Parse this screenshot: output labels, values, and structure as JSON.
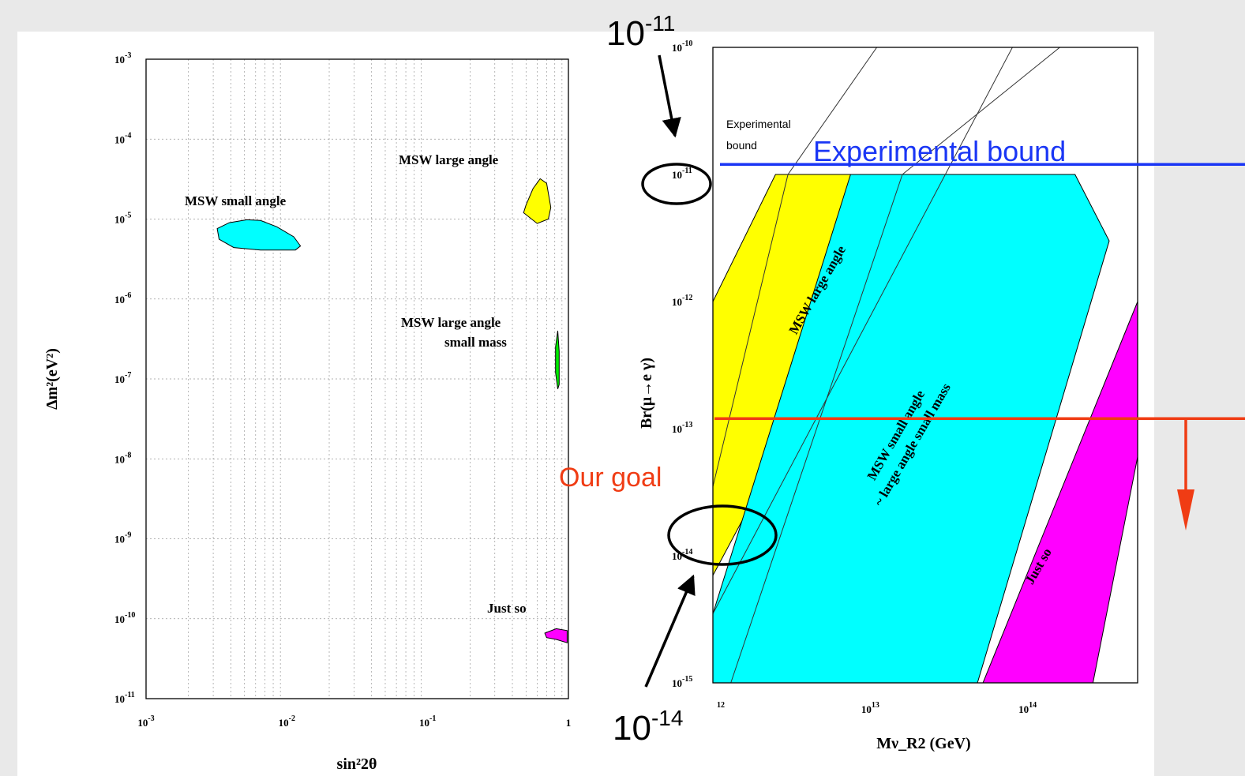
{
  "colors": {
    "background": "#e9e9e9",
    "panel": "#ffffff",
    "cyan": "#00ffff",
    "yellow": "#ffff00",
    "green": "#00ee00",
    "magenta": "#ff00ff",
    "blue_line": "#1a36f5",
    "red_line": "#f03c14",
    "annotation_blue": "#1a36f5",
    "annotation_red": "#f03c14"
  },
  "chart_data": [
    {
      "type": "scatter",
      "title": "",
      "xlabel": "sin²2θ",
      "ylabel": "Δm²(eV²)",
      "x_scale": "log",
      "y_scale": "log",
      "xlim": [
        0.001,
        1
      ],
      "ylim": [
        1e-11,
        0.001
      ],
      "grid": true,
      "x_ticks": [
        {
          "value": 0.001,
          "base": "10",
          "exp": "-3"
        },
        {
          "value": 0.01,
          "base": "10",
          "exp": "-2"
        },
        {
          "value": 0.1,
          "base": "10",
          "exp": "-1"
        },
        {
          "value": 1,
          "base": "1",
          "exp": ""
        }
      ],
      "y_ticks": [
        {
          "value": 0.001,
          "base": "10",
          "exp": "-3"
        },
        {
          "value": 0.0001,
          "base": "10",
          "exp": "-4"
        },
        {
          "value": 1e-05,
          "base": "10",
          "exp": "-5"
        },
        {
          "value": 1e-06,
          "base": "10",
          "exp": "-6"
        },
        {
          "value": 1e-07,
          "base": "10",
          "exp": "-7"
        },
        {
          "value": 1e-08,
          "base": "10",
          "exp": "-8"
        },
        {
          "value": 1e-09,
          "base": "10",
          "exp": "-9"
        },
        {
          "value": 1e-10,
          "base": "10",
          "exp": "-10"
        },
        {
          "value": 1e-11,
          "base": "10",
          "exp": "-11"
        }
      ],
      "regions": [
        {
          "label": "MSW small angle",
          "color": "cyan",
          "polygon": [
            [
              0.0032,
              7.6e-06
            ],
            [
              0.0039,
              9e-06
            ],
            [
              0.0052,
              9.8e-06
            ],
            [
              0.0065,
              9.6e-06
            ],
            [
              0.0085,
              8e-06
            ],
            [
              0.0112,
              6e-06
            ],
            [
              0.0125,
              4.6e-06
            ],
            [
              0.0115,
              4.1e-06
            ],
            [
              0.0065,
              4.1e-06
            ],
            [
              0.0042,
              4.4e-06
            ],
            [
              0.0033,
              5.6e-06
            ]
          ]
        },
        {
          "label": "MSW large angle",
          "color": "yellow",
          "polygon": [
            [
              0.5,
              1.5e-05
            ],
            [
              0.56,
              2.4e-05
            ],
            [
              0.63,
              3.2e-05
            ],
            [
              0.7,
              2.8e-05
            ],
            [
              0.75,
              1.4e-05
            ],
            [
              0.72,
              1e-05
            ],
            [
              0.6,
              8.8e-06
            ],
            [
              0.48,
              1.2e-05
            ]
          ]
        },
        {
          "label": "MSW large angle small mass",
          "color": "green",
          "polygon": [
            [
              0.81,
              2.5e-07
            ],
            [
              0.84,
              4e-07
            ],
            [
              0.86,
              2.2e-07
            ],
            [
              0.86,
              8.5e-08
            ],
            [
              0.84,
              7.5e-08
            ],
            [
              0.81,
              1.2e-07
            ]
          ]
        },
        {
          "label": "Just so",
          "color": "magenta",
          "polygon": [
            [
              0.68,
              6.6e-11
            ],
            [
              0.82,
              7.5e-11
            ],
            [
              0.98,
              7.1e-11
            ],
            [
              0.98,
              5e-11
            ],
            [
              0.82,
              5.5e-11
            ],
            [
              0.7,
              5.8e-11
            ]
          ]
        }
      ],
      "region_labels": [
        "MSW small angle",
        "MSW large angle",
        "MSW large angle",
        "small mass",
        "Just so"
      ]
    },
    {
      "type": "area",
      "title": "",
      "xlabel": "Mν_R2 (GeV)",
      "ylabel": "Br(μ→e γ)",
      "x_scale": "log",
      "y_scale": "log",
      "xlim": [
        1000000000000.0,
        500000000000000.0
      ],
      "ylim": [
        1e-15,
        1e-10
      ],
      "x_ticks": [
        {
          "value": 1000000000000.0,
          "base": "",
          "exp": "12"
        },
        {
          "value": 10000000000000.0,
          "base": "10",
          "exp": "13"
        },
        {
          "value": 100000000000000.0,
          "base": "10",
          "exp": "14"
        }
      ],
      "y_ticks": [
        {
          "value": 1e-10,
          "base": "10",
          "exp": "-10"
        },
        {
          "value": 1e-11,
          "base": "10",
          "exp": "-11"
        },
        {
          "value": 1e-12,
          "base": "10",
          "exp": "-12"
        },
        {
          "value": 1e-13,
          "base": "10",
          "exp": "-13"
        },
        {
          "value": 1e-14,
          "base": "10",
          "exp": "-14"
        },
        {
          "value": 1e-15,
          "base": "10",
          "exp": "-15"
        }
      ],
      "bands": [
        {
          "label": "MSW large angle",
          "color": "yellow",
          "polygon": [
            [
              1000000000000.0,
              1e-12
            ],
            [
              2500000000000.0,
              1e-11
            ],
            [
              23000000000000.0,
              1e-11
            ],
            [
              1000000000000.0,
              7e-15
            ]
          ]
        },
        {
          "label": "MSW small angle ~ large angle small mass",
          "color": "cyan",
          "polygon": [
            [
              1000000000000.0,
              3.5e-15
            ],
            [
              7500000000000.0,
              1e-11
            ],
            [
              200000000000000.0,
              1e-11
            ],
            [
              330000000000000.0,
              3e-12
            ],
            [
              48000000000000.0,
              1e-15
            ],
            [
              1000000000000.0,
              1e-15
            ]
          ]
        },
        {
          "label": "Just so",
          "color": "magenta",
          "polygon": [
            [
              52000000000000.0,
              1e-15
            ],
            [
              500000000000000.0,
              1e-12
            ],
            [
              500000000000000.0,
              6e-14
            ],
            [
              260000000000000.0,
              1e-15
            ]
          ]
        }
      ],
      "boundary_lines": [
        [
          [
            1000000000000.0,
            3.5e-14
          ],
          [
            3000000000000.0,
            1e-11
          ],
          [
            11000000000000.0,
            1e-10
          ]
        ],
        [
          [
            1000000000000.0,
            3.5e-15
          ],
          [
            30000000000000.0,
            1e-11
          ],
          [
            80000000000000.0,
            1e-10
          ]
        ],
        [
          [
            1300000000000.0,
            1e-15
          ],
          [
            16000000000000.0,
            1e-11
          ],
          [
            160000000000000.0,
            1e-10
          ]
        ]
      ],
      "experimental_bound": 1.2e-11,
      "goal": 1.2e-13,
      "panel_label": [
        "Experimental",
        "bound"
      ]
    }
  ],
  "annotations": {
    "experimental_bound": "Experimental bound",
    "our_goal": "Our goal",
    "top_callout": {
      "base": "10",
      "exp": "-11"
    },
    "bottom_callout": {
      "base": "10",
      "exp": "-14"
    }
  }
}
